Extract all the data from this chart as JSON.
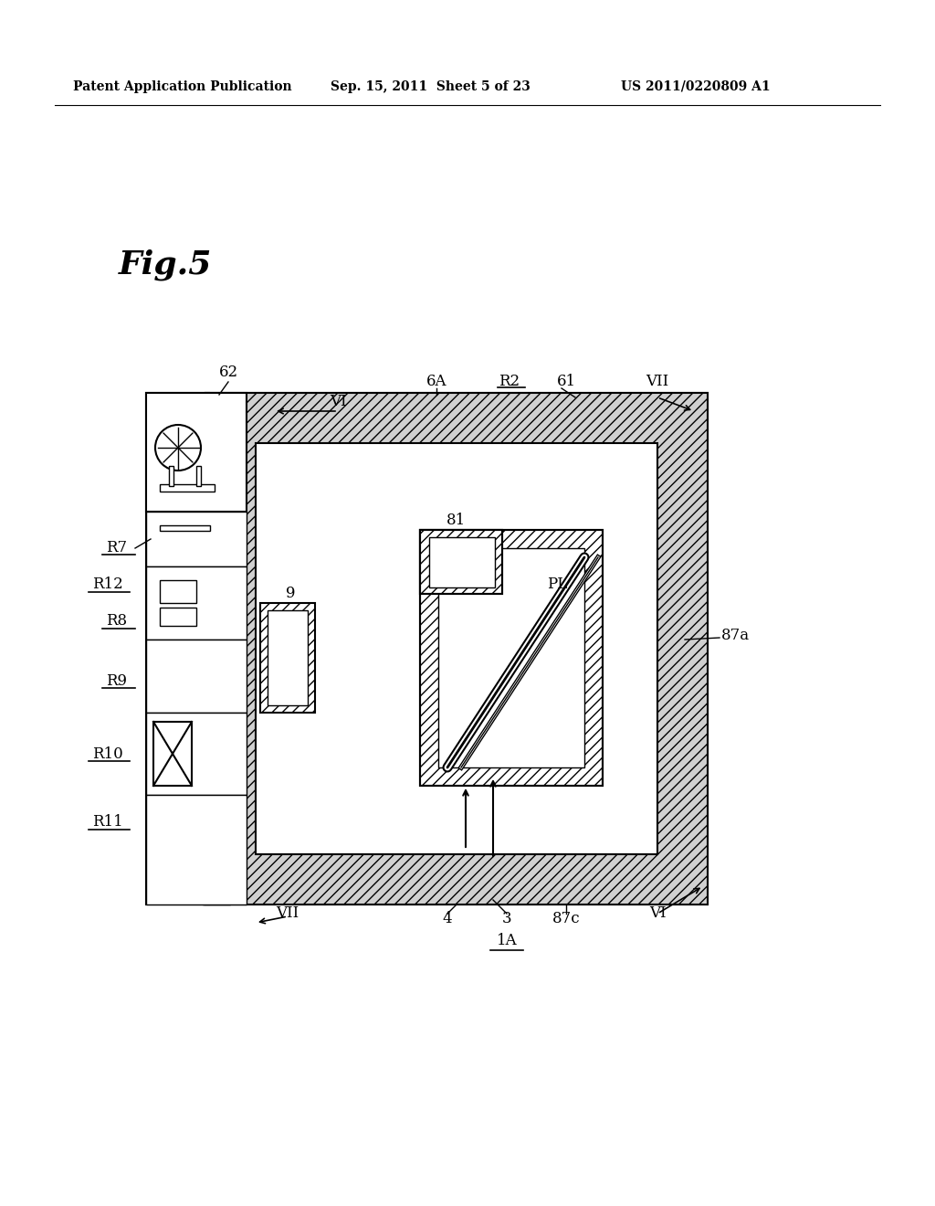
{
  "bg_color": "#ffffff",
  "header_text1": "Patent Application Publication",
  "header_text2": "Sep. 15, 2011  Sheet 5 of 23",
  "header_text3": "US 2011/0220809 A1",
  "fig_label": "Fig.5",
  "labels": {
    "VI_top": "VI",
    "VII_top": "VII",
    "62": "62",
    "6A": "6A",
    "R2": "R2",
    "61": "61",
    "R7": "R7",
    "R12": "R12",
    "R8": "R8",
    "9": "9",
    "PL": "PL",
    "87a": "87a",
    "R9": "R9",
    "R10": "R10",
    "R11": "R11",
    "81": "81",
    "VII_bot": "VII",
    "4": "4",
    "3": "3",
    "87c": "87c",
    "1A": "1A",
    "VI_bot": "VI"
  }
}
